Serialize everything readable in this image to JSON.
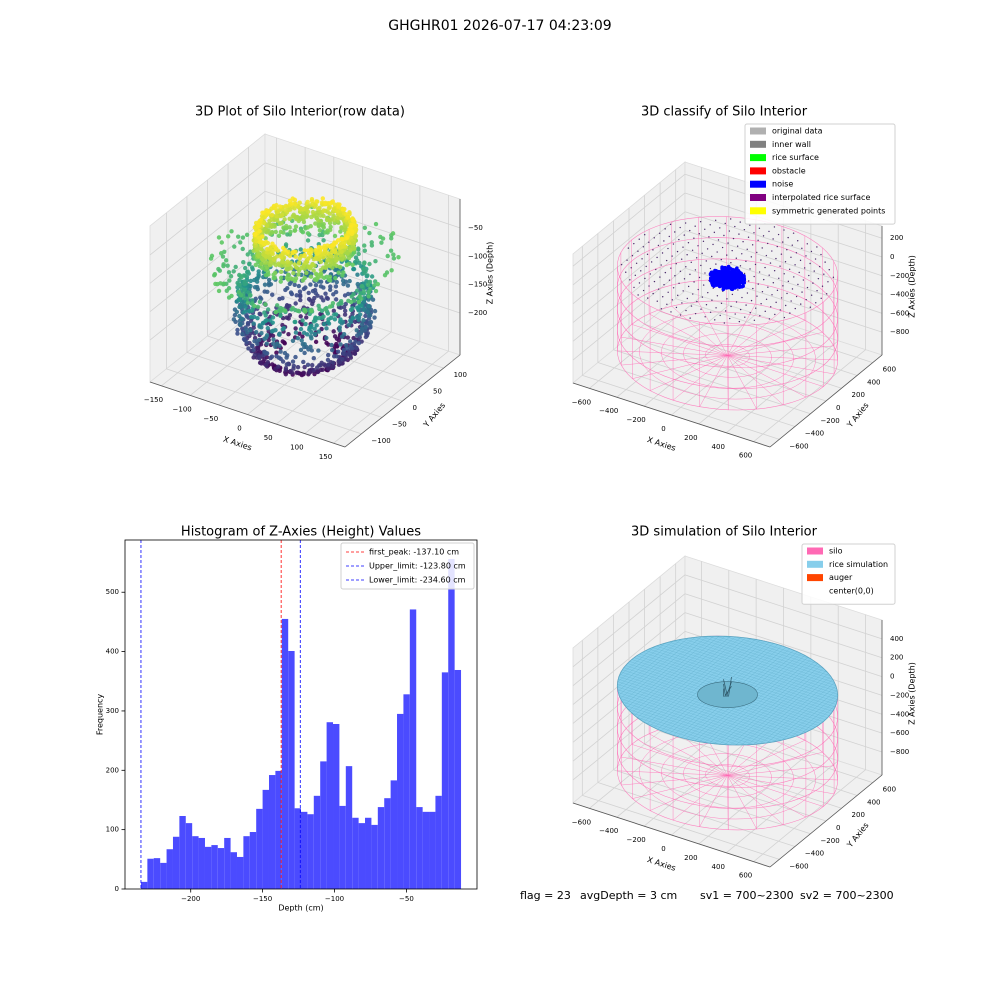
{
  "title": "GHGHR01 2026-07-17 04:23:09",
  "chart_data": [
    {
      "type": "scatter3d",
      "title": "3D Plot of Silo Interior(row data)",
      "xlabel": "X Axies",
      "ylabel": "Y Axies",
      "zlabel": "Z Axies (Depth)",
      "xlim": [
        -170,
        170
      ],
      "ylim": [
        -140,
        140
      ],
      "zlim": [
        -274,
        1
      ],
      "xticks": [
        {
          "value": -150,
          "label": "−150"
        },
        {
          "value": -100,
          "label": "−100"
        },
        {
          "value": -50,
          "label": "−50"
        },
        0,
        50,
        100,
        150
      ],
      "yticks": [
        {
          "value": -100,
          "label": "−100"
        },
        {
          "value": -50,
          "label": "−50"
        },
        0,
        50,
        100
      ],
      "zticks": [
        {
          "value": -200,
          "label": "−200"
        },
        {
          "value": -150,
          "label": "−150"
        },
        {
          "value": -100,
          "label": "−100"
        },
        {
          "value": -50,
          "label": "−50"
        }
      ]
    },
    {
      "type": "scatter3d",
      "title": "3D classify of Silo Interior",
      "xlabel": "X Axies",
      "ylabel": "Y Axies",
      "zlabel": "Z Axies (Depth)",
      "xlim": [
        -720,
        720
      ],
      "ylim": [
        -720,
        720
      ],
      "zlim": [
        -1044,
        330
      ],
      "xticks": [
        {
          "value": -600,
          "label": "−600"
        },
        {
          "value": -400,
          "label": "−400"
        },
        {
          "value": -200,
          "label": "−200"
        },
        0,
        200,
        400,
        600
      ],
      "yticks": [
        {
          "value": -600,
          "label": "−600"
        },
        {
          "value": -400,
          "label": "−400"
        },
        {
          "value": -200,
          "label": "−200"
        },
        0,
        200,
        400,
        600
      ],
      "zticks": [
        {
          "value": -800,
          "label": "−800"
        },
        {
          "value": -600,
          "label": "−600"
        },
        {
          "value": -400,
          "label": "−400"
        },
        {
          "value": -200,
          "label": "−200"
        },
        0,
        200
      ],
      "legend": [
        {
          "name": "original data",
          "color": "#b0b0b0"
        },
        {
          "name": "inner wall",
          "color": "#808080"
        },
        {
          "name": "rice surface",
          "color": "#00ff00"
        },
        {
          "name": "obstacle",
          "color": "#ff0000"
        },
        {
          "name": "noise",
          "color": "#0000ff"
        },
        {
          "name": "interpolated rice surface",
          "color": "#800080"
        },
        {
          "name": "symmetric generated points",
          "color": "#ffff00"
        }
      ]
    },
    {
      "type": "histogram",
      "title": "Histogram of Z-Axies (Height) Values",
      "xlabel": "Depth (cm)",
      "ylabel": "Frequency",
      "color": "#4b4bff",
      "bins": [
        -234.6,
        -230.15,
        -225.7,
        -221.24,
        -216.79,
        -212.34,
        -207.89,
        -203.44,
        -198.98,
        -194.53,
        -190.08,
        -185.63,
        -181.18,
        -176.72,
        -172.27,
        -167.82,
        -163.37,
        -158.92,
        -154.46,
        -150.01,
        -145.56,
        -141.11,
        -136.66,
        -132.2,
        -127.75,
        -123.3,
        -118.85,
        -114.4,
        -109.94,
        -105.49,
        -101.04,
        -96.59,
        -92.14,
        -87.68,
        -83.23,
        -78.78,
        -74.33,
        -69.88,
        -65.42,
        -60.97,
        -56.52,
        -52.07,
        -47.62,
        -43.16,
        -38.71,
        -34.26,
        -29.81,
        -25.36,
        -20.9,
        -16.45,
        -12.0
      ],
      "values": [
        12,
        51,
        52,
        44,
        67,
        88,
        123,
        111,
        89,
        86,
        71,
        74,
        69,
        86,
        62,
        54,
        89,
        96,
        135,
        167,
        192,
        199,
        455,
        401,
        136,
        130,
        126,
        157,
        215,
        281,
        278,
        140,
        207,
        120,
        111,
        120,
        108,
        138,
        153,
        183,
        295,
        328,
        471,
        138,
        130,
        130,
        157,
        365,
        556,
        369
      ],
      "xlim": [
        -245.7,
        -0.9
      ],
      "ylim": [
        0,
        588
      ],
      "xticks": [
        {
          "value": -200,
          "label": "−200"
        },
        {
          "value": -150,
          "label": "−150"
        },
        {
          "value": -100,
          "label": "−100"
        },
        {
          "value": -50,
          "label": "−50"
        }
      ],
      "yticks": [
        0,
        100,
        200,
        300,
        400,
        500
      ],
      "vlines": [
        {
          "name": "first_peak: -137.10 cm",
          "value": -137.1,
          "color": "#ff0000"
        },
        {
          "name": "Upper_limit: -123.80 cm",
          "value": -123.8,
          "color": "#0000ff"
        },
        {
          "name": "Lower_limit: -234.60 cm",
          "value": -234.6,
          "color": "#0000ff"
        }
      ]
    },
    {
      "type": "surface3d",
      "title": "3D simulation of Silo Interior",
      "xlabel": "X Axies",
      "ylabel": "Y Axies",
      "zlabel": "Z Axies (Depth)",
      "xlim": [
        -720,
        720
      ],
      "ylim": [
        -720,
        720
      ],
      "zlim": [
        -1044,
        600
      ],
      "xticks": [
        {
          "value": -600,
          "label": "−600"
        },
        {
          "value": -400,
          "label": "−400"
        },
        {
          "value": -200,
          "label": "−200"
        },
        0,
        200,
        400,
        600
      ],
      "yticks": [
        {
          "value": -600,
          "label": "−600"
        },
        {
          "value": -400,
          "label": "−400"
        },
        {
          "value": -200,
          "label": "−200"
        },
        0,
        200,
        400,
        600
      ],
      "zticks": [
        {
          "value": -800,
          "label": "−800"
        },
        {
          "value": -600,
          "label": "−600"
        },
        {
          "value": -400,
          "label": "−400"
        },
        {
          "value": -200,
          "label": "−200"
        },
        0,
        200,
        400
      ],
      "legend": [
        {
          "name": "silo",
          "color": "#ff69b4"
        },
        {
          "name": "rice simulation",
          "color": "#87ceeb"
        },
        {
          "name": "auger",
          "color": "#ff4500"
        },
        {
          "name": "center(0,0)",
          "color": "#ffffff"
        }
      ]
    }
  ],
  "status": [
    "flag = 23",
    "avgDepth = 3 cm",
    "sv1 = 700~2300",
    "sv2 = 700~2300"
  ]
}
